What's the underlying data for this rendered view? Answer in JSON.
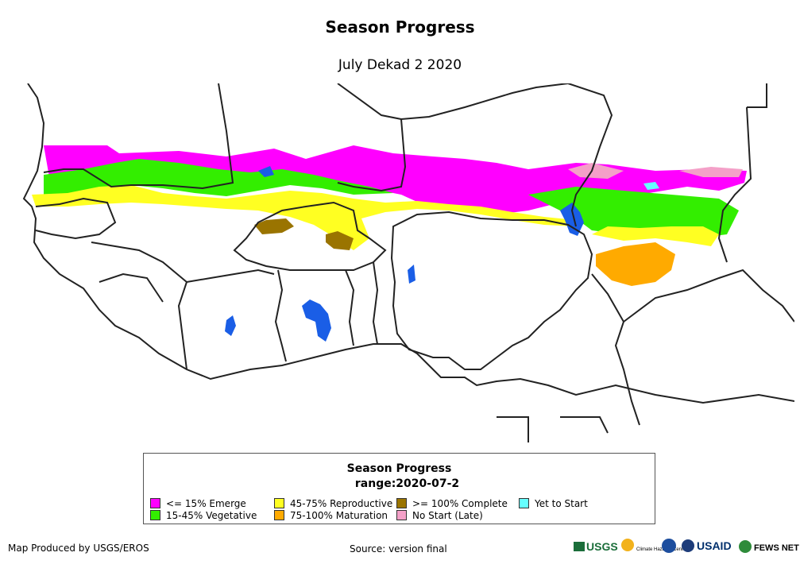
{
  "title": "Season Progress",
  "subtitle": "July Dekad 2 2020",
  "legend": {
    "title": "Season Progress",
    "subtitle": "range:2020-07-2",
    "items": [
      {
        "label": "<= 15% Emerge",
        "color": "#ff00ff"
      },
      {
        "label": "15-45% Vegetative",
        "color": "#33ee00"
      },
      {
        "label": "45-75% Reproductive",
        "color": "#ffff22"
      },
      {
        "label": "75-100% Maturation",
        "color": "#ffaa00"
      },
      {
        "label": ">= 100% Complete",
        "color": "#9a7400"
      },
      {
        "label": "No Start (Late)",
        "color": "#f4a0c8"
      },
      {
        "label": "Yet to Start",
        "color": "#66ffff"
      }
    ]
  },
  "colors": {
    "water": "#1a5ee6",
    "border": "#222222"
  },
  "footer": {
    "produced_by": "Map Produced by USGS/EROS",
    "source": "Source: version final"
  },
  "logos": {
    "usgs": "USGS",
    "chc": "Climate Hazards Center",
    "usaid": "USAID",
    "fews": "FEWS NET"
  }
}
